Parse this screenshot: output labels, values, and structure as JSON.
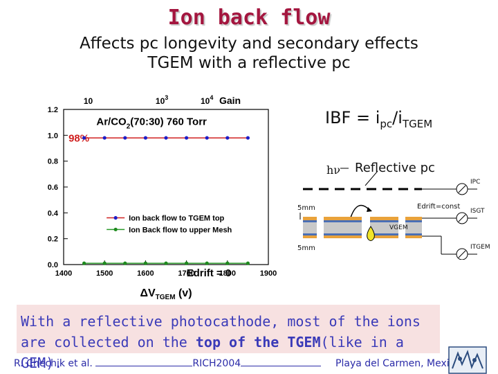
{
  "title": "Ion back flow",
  "subtitle_lines": [
    "Affects pc longevity and  secondary effects",
    "TGEM with a  reflective pc"
  ],
  "equation": {
    "lhs": "IBF = i",
    "sub1": "pc",
    "mid": "/i",
    "sub2": "TGEM"
  },
  "chart_data": {
    "type": "line",
    "gas_label": "Ar/CO",
    "gas_sub": "2",
    "gas_rest": "(70:30) 760 Torr",
    "percent_label": "98%",
    "drift_label": "Edrift = 0",
    "x_ticks": [
      "1400",
      "1500",
      "1600",
      "1700",
      "1800",
      "1900"
    ],
    "y_ticks": [
      "0.0",
      "0.2",
      "0.4",
      "0.6",
      "0.8",
      "1.0",
      "1.2"
    ],
    "top_axis": {
      "label": "Gain",
      "ticks": [
        "10",
        "10",
        "10"
      ],
      "tick_sups": [
        "",
        "3",
        "4"
      ]
    },
    "xlabel": "ΔV",
    "xlabel_sub": "TGEM",
    "xlabel_unit": " (v)",
    "xlim": [
      1400,
      1900
    ],
    "ylim": [
      0,
      1.2
    ],
    "series": [
      {
        "name": "Ion back flow to TGEM top",
        "color": "#d02020",
        "marker_color": "#1d1dc8",
        "x": [
          1450,
          1500,
          1550,
          1600,
          1650,
          1700,
          1750,
          1800,
          1850
        ],
        "y": [
          0.98,
          0.98,
          0.98,
          0.98,
          0.98,
          0.98,
          0.98,
          0.98,
          0.98
        ]
      },
      {
        "name": "Ion Back flow to upper Mesh",
        "color": "#2a9a2a",
        "marker_color": "#1e8a1e",
        "x": [
          1450,
          1500,
          1550,
          1600,
          1650,
          1700,
          1750,
          1800,
          1850
        ],
        "y": [
          0.01,
          0.01,
          0.01,
          0.01,
          0.01,
          0.01,
          0.01,
          0.01,
          0.01
        ]
      }
    ]
  },
  "diagram": {
    "hv": "hν",
    "reflective_pc": "Reflective pc",
    "mm_top": "5mm",
    "mm_bottom": "5mm",
    "edrift": "Edrift=const",
    "vgem": "VGEM",
    "i_pc": "IPC",
    "i_sgt": "ISGT",
    "i_tgem": "ITGEM"
  },
  "note": {
    "text1": "With a reflective photocathode, most of the ions are collected on the ",
    "bold": "top of the TGEM",
    "text2": "(like in a GEM)."
  },
  "footer": {
    "author": "R. Chechik et al.",
    "conf": "RICH2004",
    "place": "Playa del Carmen, Mexico"
  },
  "colors": {
    "title": "#a4163f",
    "note_bg": "#f7e1e1",
    "note_text": "#3a3ab8",
    "footer": "#2b2ba8"
  }
}
